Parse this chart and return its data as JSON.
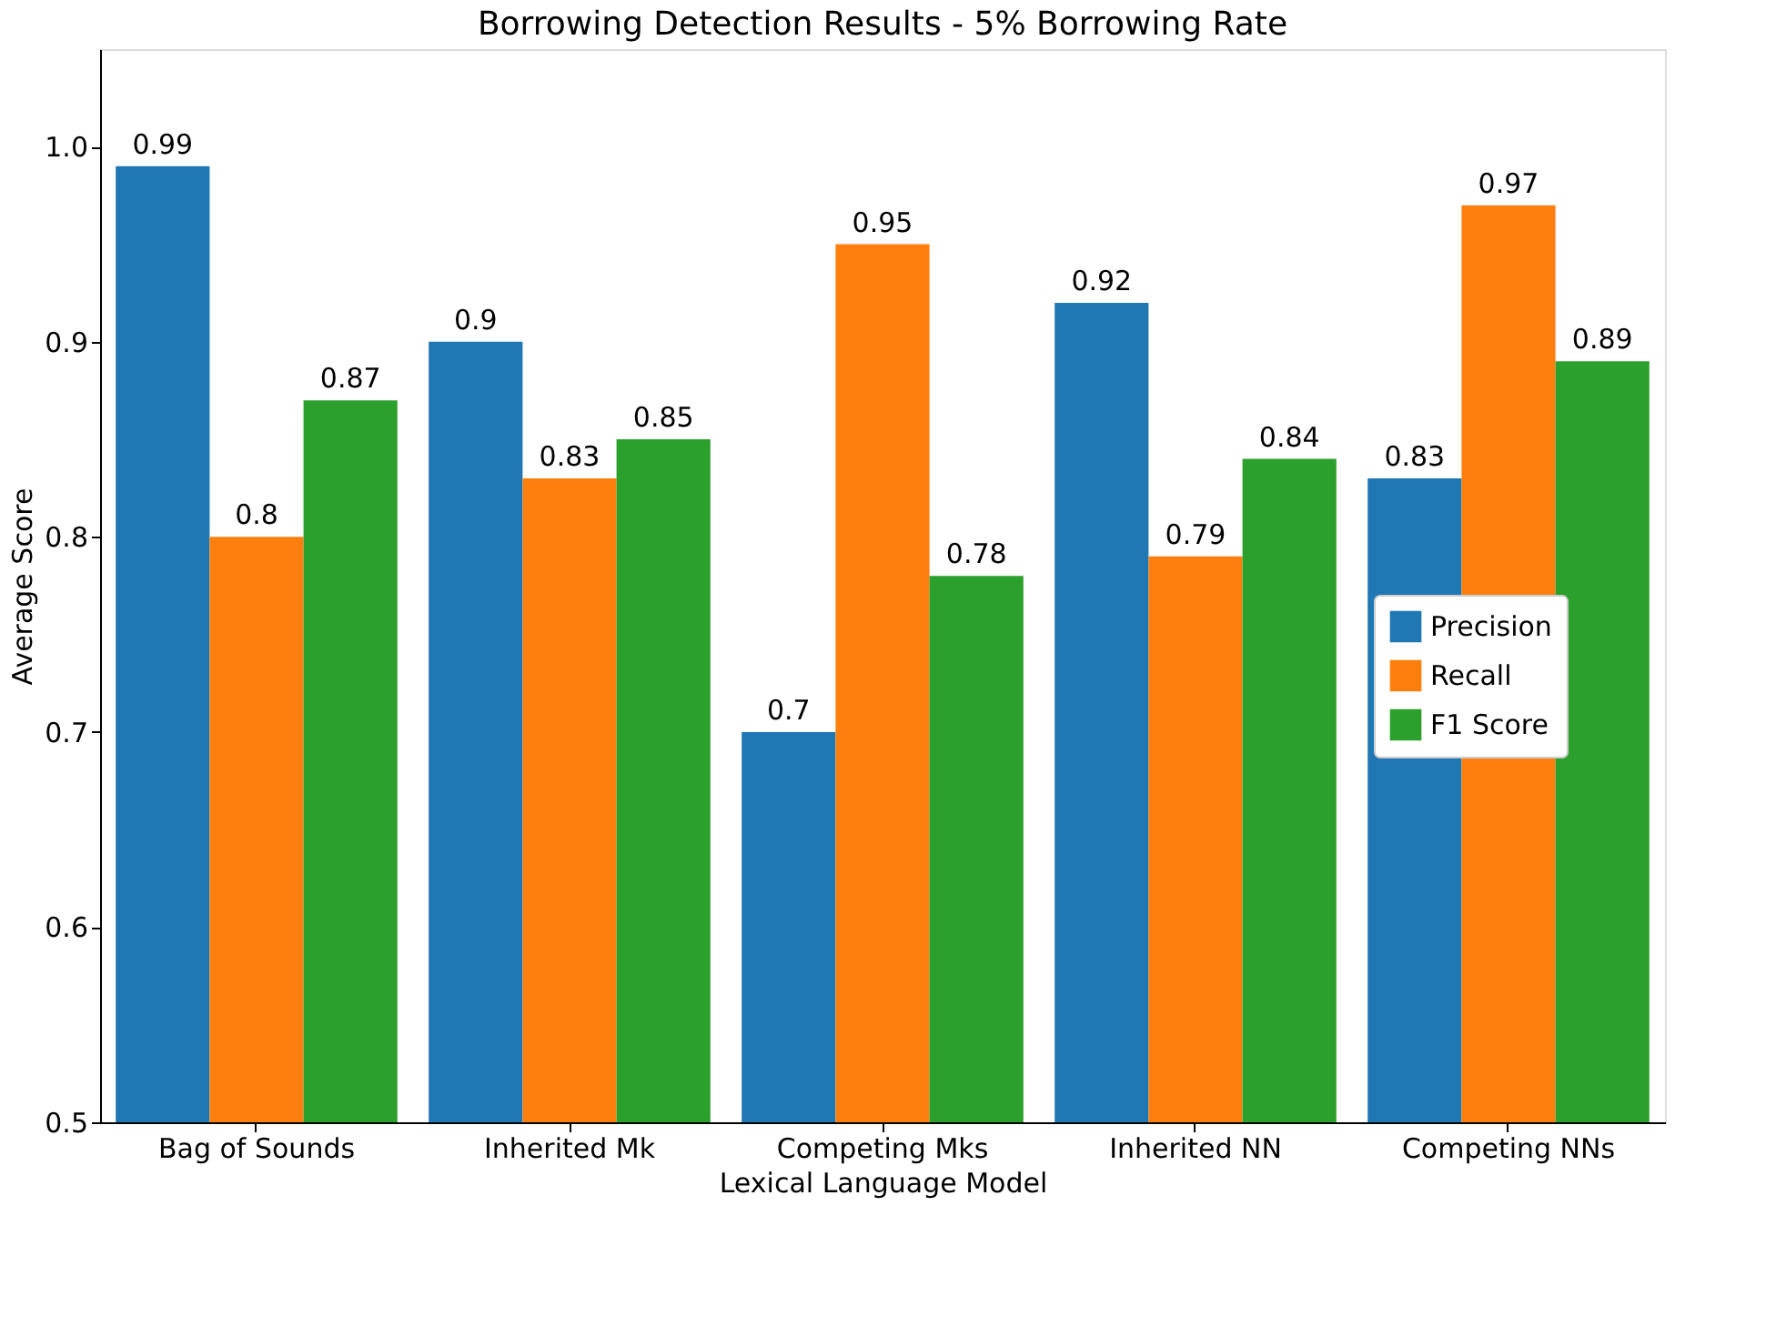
{
  "chart_data": {
    "type": "bar",
    "title": "Borrowing Detection Results - 5% Borrowing Rate",
    "xlabel": "Lexical Language Model",
    "ylabel": "Average Score",
    "categories": [
      "Bag of Sounds",
      "Inherited Mk",
      "Competing Mks",
      "Inherited NN",
      "Competing NNs"
    ],
    "series": [
      {
        "name": "Precision",
        "color": "#1f77b4",
        "values": [
          0.99,
          0.9,
          0.7,
          0.92,
          0.83
        ]
      },
      {
        "name": "Recall",
        "color": "#ff7f0e",
        "values": [
          0.8,
          0.83,
          0.95,
          0.79,
          0.97
        ]
      },
      {
        "name": "F1 Score",
        "color": "#2ca02c",
        "values": [
          0.87,
          0.85,
          0.78,
          0.84,
          0.89
        ]
      }
    ],
    "ylim": [
      0.5,
      1.05
    ],
    "yticks": [
      0.5,
      0.6,
      0.7,
      0.8,
      0.9,
      {
        "value": 1.0,
        "label": "1.0"
      }
    ],
    "data_labels": true,
    "legend": "center right",
    "grid": false
  }
}
